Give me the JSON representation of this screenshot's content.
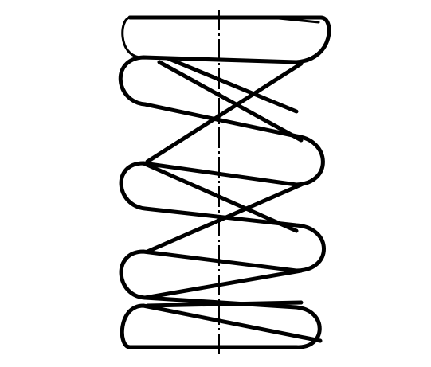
{
  "diagram": {
    "subject": "helical-compression-spring",
    "stroke_color": "#000000",
    "background_color": "#ffffff",
    "active_coils": 4,
    "end_type": "closed-and-ground"
  }
}
